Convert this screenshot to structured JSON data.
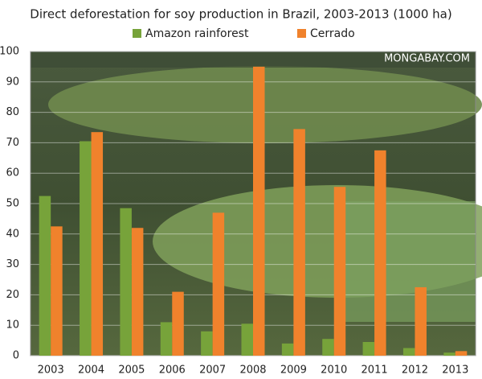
{
  "chart_data": {
    "type": "bar",
    "title": "Direct deforestation for soy production in Brazil, 2003-2013 (1000 ha)",
    "watermark": "MONGABAY.COM",
    "categories": [
      "2003",
      "2004",
      "2005",
      "2006",
      "2007",
      "2008",
      "2009",
      "2010",
      "2011",
      "2012",
      "2013"
    ],
    "series": [
      {
        "name": "Amazon rainforest",
        "color": "#77a33a",
        "values": [
          52.5,
          70.5,
          48.5,
          11,
          8,
          10.5,
          4,
          5.5,
          4.5,
          2.5,
          1
        ]
      },
      {
        "name": "Cerrado",
        "color": "#f0822c",
        "values": [
          42.5,
          73.5,
          42,
          21,
          47,
          95,
          74.5,
          55.5,
          67.5,
          22.5,
          1.5
        ]
      }
    ],
    "ylim": [
      0,
      100
    ],
    "yticks": [
      0,
      10,
      20,
      30,
      40,
      50,
      60,
      70,
      80,
      90,
      100
    ],
    "grid": true
  }
}
